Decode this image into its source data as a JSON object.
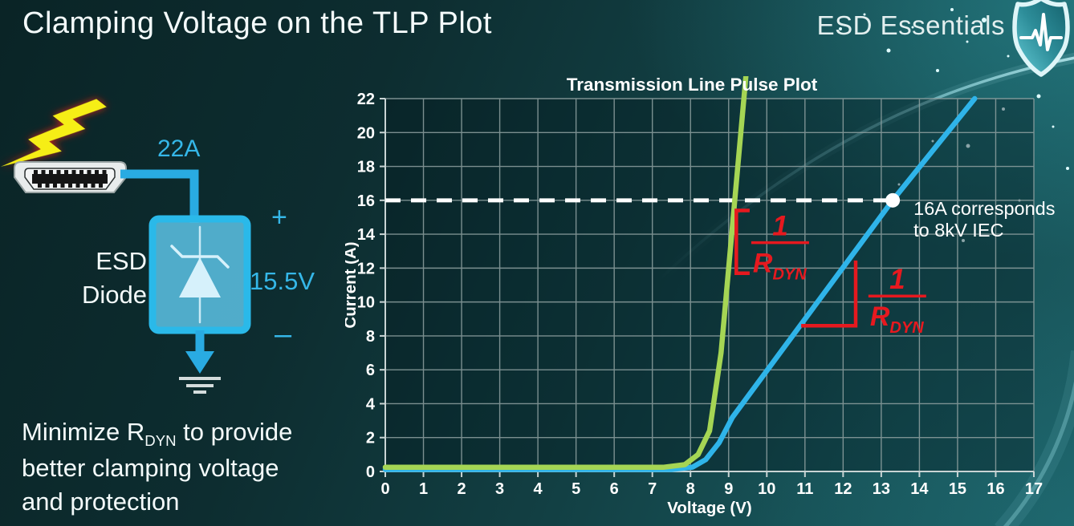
{
  "slide": {
    "title": "Clamping Voltage on the TLP Plot",
    "brand": "ESD Essentials"
  },
  "circuit": {
    "surge_current": "22A",
    "clamp_voltage": "15.5V",
    "plus_label": "+",
    "minus_label": "–",
    "component_label_line1": "ESD",
    "component_label_line2": "Diode"
  },
  "caption": {
    "line1_pre": "Minimize R",
    "line1_sub": "DYN",
    "line1_post": " to provide",
    "line2": "better clamping voltage",
    "line3": "and protection"
  },
  "chart_data": {
    "type": "line",
    "title": "Transmission Line Pulse Plot",
    "xlabel": "Voltage (V)",
    "ylabel": "Current (A)",
    "xlim": [
      0,
      17
    ],
    "ylim": [
      0,
      22
    ],
    "xticks": [
      "0",
      "1",
      "2",
      "3",
      "4",
      "5",
      "6",
      "7",
      "8",
      "9",
      "10",
      "11",
      "12",
      "13",
      "14",
      "15",
      "16",
      "17"
    ],
    "yticks": [
      "0",
      "2",
      "4",
      "6",
      "8",
      "10",
      "12",
      "14",
      "16",
      "18",
      "20",
      "22"
    ],
    "grid": true,
    "legend": "none",
    "series": [
      {
        "name": "blue-curve-higher-rdyn",
        "color": "#2fb4e9",
        "points": [
          [
            0,
            0.12
          ],
          [
            7.5,
            0.12
          ],
          [
            8.05,
            0.25
          ],
          [
            8.4,
            0.7
          ],
          [
            8.75,
            1.7
          ],
          [
            9.1,
            3.2
          ],
          [
            13.3,
            16
          ],
          [
            15.45,
            22
          ]
        ]
      },
      {
        "name": "green-curve-low-rdyn",
        "color": "#a5d554",
        "points": [
          [
            0,
            0.25
          ],
          [
            7.3,
            0.25
          ],
          [
            7.85,
            0.4
          ],
          [
            8.2,
            1.0
          ],
          [
            8.5,
            2.4
          ],
          [
            8.8,
            7.0
          ],
          [
            9.45,
            23.3
          ]
        ]
      }
    ],
    "reference_line": {
      "y": 16,
      "x_start": 0,
      "x_end": 13.3,
      "color": "#ffffff",
      "style": "dashed"
    },
    "marker": {
      "x": 13.3,
      "y": 16,
      "color": "#ffffff",
      "label_lines": [
        "16A corresponds",
        "to 8kV IEC"
      ]
    },
    "slope_annotations": [
      {
        "numerator": "1",
        "denominator": "R",
        "denominator_sub": "DYN",
        "color": "#e6191f",
        "indicator": [
          [
            9.55,
            15.4
          ],
          [
            9.2,
            15.4
          ],
          [
            9.2,
            11.7
          ],
          [
            9.55,
            11.7
          ]
        ],
        "fraction_center_x": 10.35,
        "fraction_bar_y": 13.5
      },
      {
        "numerator": "1",
        "denominator": "R",
        "denominator_sub": "DYN",
        "color": "#e6191f",
        "indicator": [
          [
            12.33,
            12.45
          ],
          [
            12.33,
            8.6
          ],
          [
            10.9,
            8.6
          ]
        ],
        "fraction_center_x": 13.42,
        "fraction_bar_y": 10.35
      }
    ]
  }
}
